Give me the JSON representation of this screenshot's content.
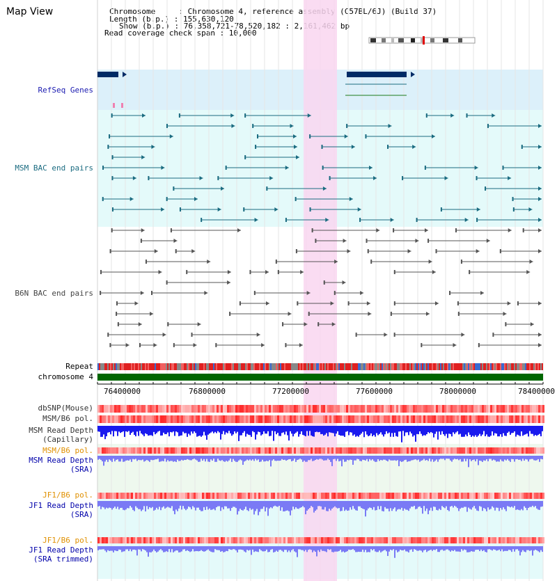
{
  "page_title": "Map View",
  "info": {
    "chromosome": "Chromosome     : Chromosome 4, reference assembly (C57BL/6J) (Build 37)",
    "length": "Length (b.p.) : 155,630,120",
    "show": "Show (b.p.) : 76,358,721-78,520,182 : 2,161,462 bp",
    "coverage": "Read coverage check span : 10,000"
  },
  "tracks": {
    "refseq": "RefSeq Genes",
    "msm_bac": "MSM BAC end pairs",
    "b6n_bac": "B6N BAC end pairs",
    "repeat": "Repeat",
    "chromosome": "chromosome 4",
    "dbsnp": "dbSNP(Mouse)",
    "msm_b6_pol": "MSM/B6 pol.",
    "msm_depth_cap_1": "MSM Read Depth",
    "msm_depth_cap_2": "(Capillary)",
    "msm_b6_pol2": "MSM/B6 pol.",
    "msm_depth_sra_1": "MSM Read Depth",
    "msm_depth_sra_2": "(SRA)",
    "jf1_b6_pol": "JF1/B6 pol.",
    "jf1_depth_sra_1": "JF1 Read Depth",
    "jf1_depth_sra_2": "(SRA)",
    "jf1_b6_pol2": "JF1/B6 pol.",
    "jf1_depth_trim_1": "JF1 Read Depth",
    "jf1_depth_trim_2": "(SRA trimmed)"
  },
  "axis": {
    "ticks": [
      "76400000",
      "76800000",
      "77200000",
      "77600000",
      "78000000",
      "78400000"
    ]
  },
  "colors": {
    "highlight": "#f9d6f0",
    "refseq_bg": "#dcf0fa",
    "msm_bg": "#e4fafa",
    "gene": "#002b66",
    "msm_feature": "#1a6b80",
    "b6n_feature": "#555555",
    "chrom": "#006600",
    "snp": "#e03030",
    "depth": "#1a1aee",
    "depth_light": "#7a7af5"
  }
}
